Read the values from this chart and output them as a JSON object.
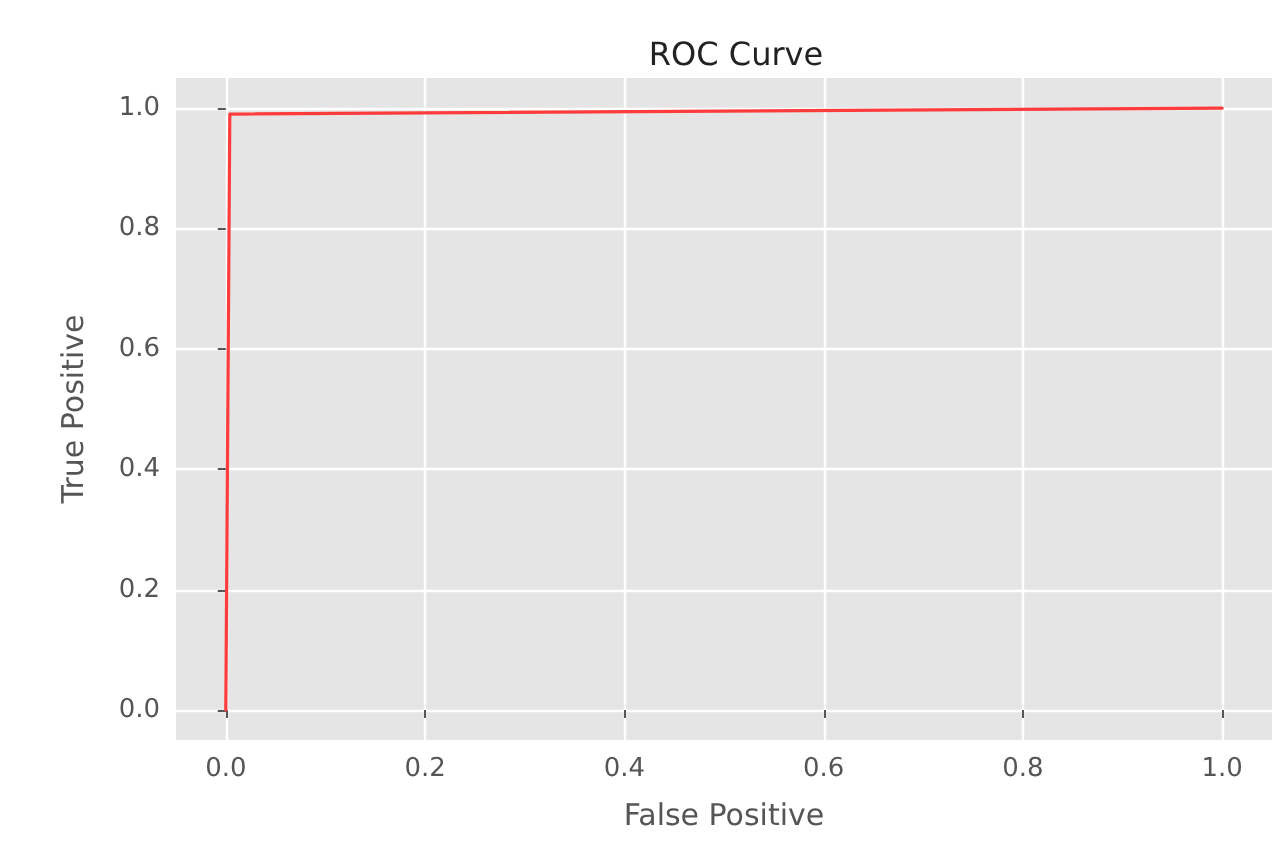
{
  "chart_data": {
    "type": "line",
    "title": "ROC Curve",
    "xlabel": "False Positive",
    "ylabel": "True Positive",
    "x": [
      0,
      0.004,
      1
    ],
    "series": [
      {
        "color": "#ff3b3b",
        "values": [
          0,
          0.99,
          1
        ]
      }
    ],
    "xlim": [
      -0.05,
      1.05
    ],
    "xticks": [
      {
        "value": 0,
        "label": "0.0"
      },
      {
        "value": 0.2,
        "label": "0.2"
      },
      {
        "value": 0.4,
        "label": "0.4"
      },
      {
        "value": 0.6,
        "label": "0.6"
      },
      {
        "value": 0.8,
        "label": "0.8"
      },
      {
        "value": 1,
        "label": "1.0"
      }
    ],
    "ylim": [
      -0.05,
      1.05
    ],
    "yticks": [
      {
        "value": 0,
        "label": "0.0"
      },
      {
        "value": 0.2,
        "label": "0.2"
      },
      {
        "value": 0.4,
        "label": "0.4"
      },
      {
        "value": 0.6,
        "label": "0.6"
      },
      {
        "value": 0.8,
        "label": "0.8"
      },
      {
        "value": 1,
        "label": "1.0"
      }
    ],
    "grid": true,
    "marker": "none",
    "line_style": "solid"
  }
}
